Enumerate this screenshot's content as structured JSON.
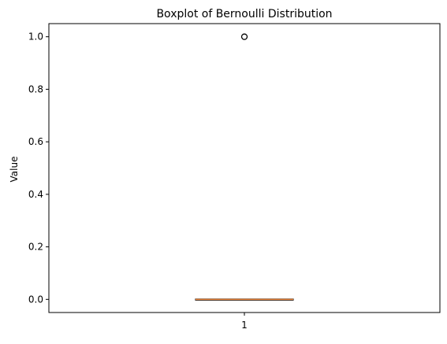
{
  "chart_data": {
    "type": "box",
    "title": "Boxplot of Bernoulli Distribution",
    "xlabel": "",
    "ylabel": "Value",
    "xlim": [
      0.5,
      1.5
    ],
    "ylim": [
      -0.05,
      1.05
    ],
    "categories": [
      "1"
    ],
    "x_ticks": [
      1
    ],
    "y_ticks": [
      0.0,
      0.2,
      0.4,
      0.6,
      0.8,
      1.0
    ],
    "y_tick_labels": [
      "0.0",
      "0.2",
      "0.4",
      "0.6",
      "0.8",
      "1.0"
    ],
    "boxes": [
      {
        "position": 1,
        "label": "1",
        "q1": 0.0,
        "median": 0.0,
        "q3": 0.0,
        "whisker_low": 0.0,
        "whisker_high": 0.0,
        "outliers": [
          1.0
        ]
      }
    ],
    "grid": false,
    "colors": {
      "box": "#000000",
      "median": "#e8833a",
      "outlier_edge": "#000000"
    }
  }
}
